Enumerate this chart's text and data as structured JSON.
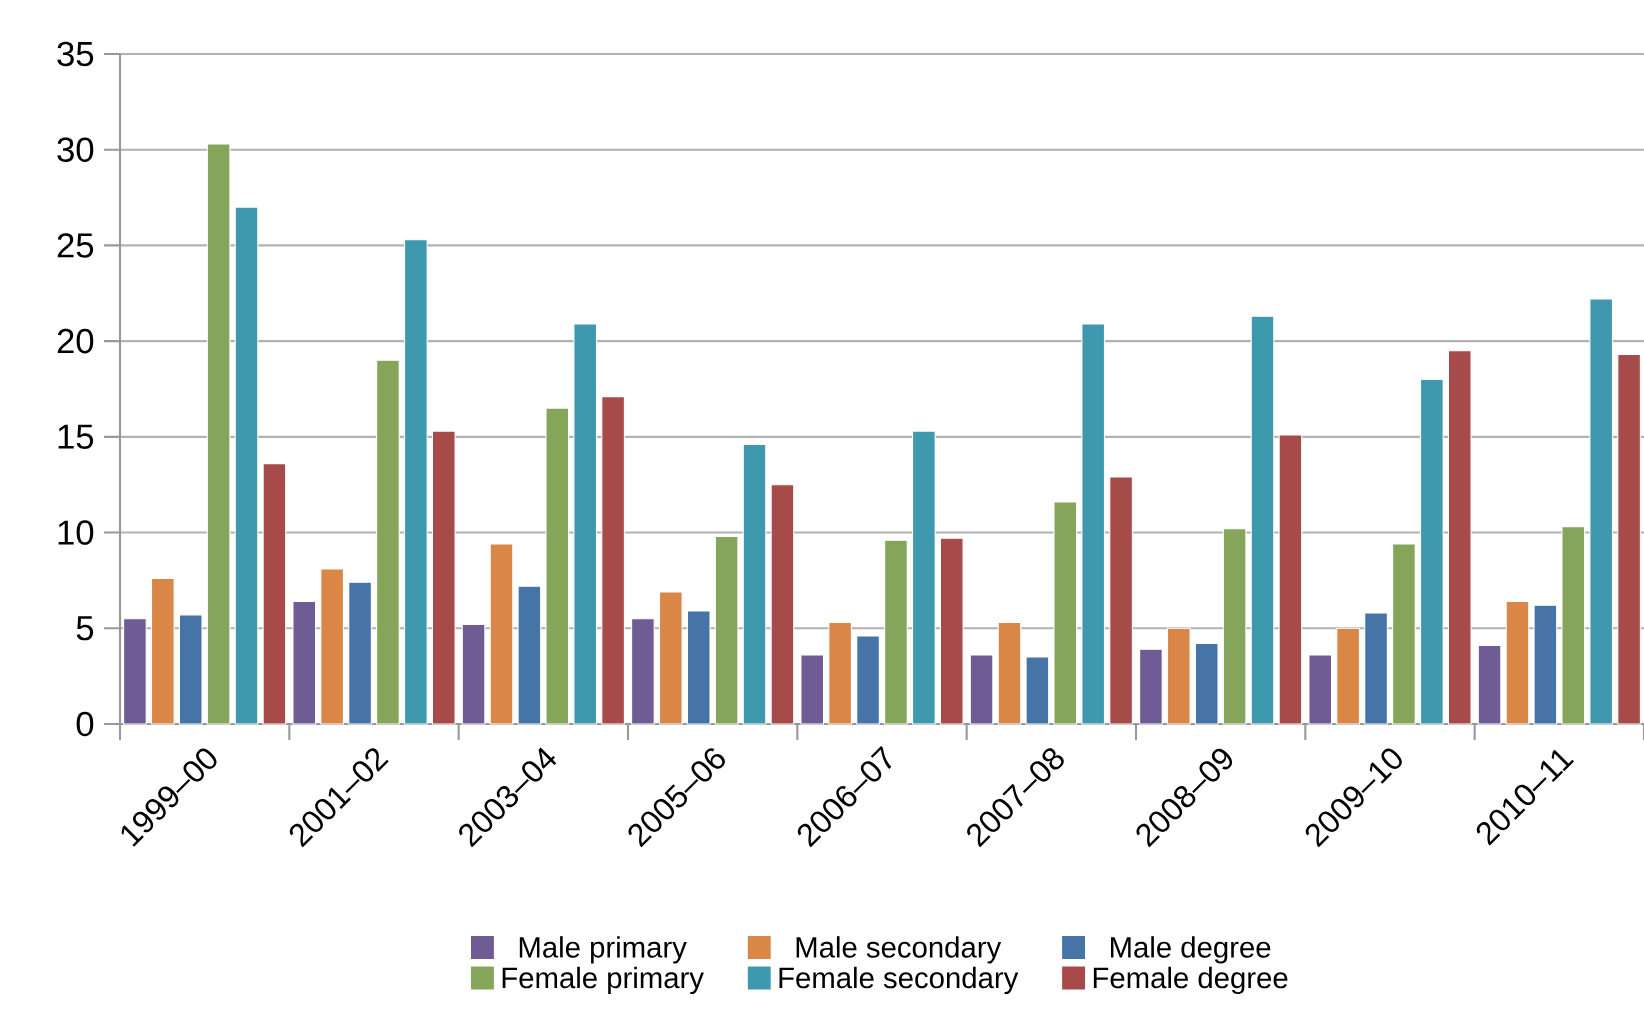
{
  "chart_data": {
    "type": "bar",
    "categories": [
      "1999–00",
      "2001–02",
      "2003–04",
      "2005–06",
      "2006–07",
      "2007–08",
      "2008–09",
      "2009–10",
      "2010–11"
    ],
    "series": [
      {
        "name": "Male primary",
        "color": "#705c94",
        "values": [
          5.5,
          6.4,
          5.2,
          5.5,
          3.6,
          3.6,
          3.9,
          3.6,
          4.1
        ]
      },
      {
        "name": "Male secondary",
        "color": "#d98646",
        "values": [
          7.6,
          8.1,
          9.4,
          6.9,
          5.3,
          5.3,
          5.0,
          5.0,
          6.4
        ]
      },
      {
        "name": "Male degree",
        "color": "#4674a7",
        "values": [
          5.7,
          7.4,
          7.2,
          5.9,
          4.6,
          3.5,
          4.2,
          5.8,
          6.2
        ]
      },
      {
        "name": "Female primary",
        "color": "#85a55a",
        "values": [
          30.3,
          19.0,
          16.5,
          9.8,
          9.6,
          11.6,
          10.2,
          9.4,
          10.3
        ]
      },
      {
        "name": "Female secondary",
        "color": "#3e99ae",
        "values": [
          27.0,
          25.3,
          20.9,
          14.6,
          15.3,
          20.9,
          21.3,
          18.0,
          22.2
        ]
      },
      {
        "name": "Female degree",
        "color": "#a64a4a",
        "values": [
          13.6,
          15.3,
          17.1,
          12.5,
          9.7,
          12.9,
          15.1,
          19.5,
          19.3
        ]
      }
    ],
    "ylim": [
      0,
      35
    ],
    "yticks": [
      0,
      5,
      10,
      15,
      20,
      25,
      30,
      35
    ],
    "grid": "y",
    "legend": "bottom"
  }
}
